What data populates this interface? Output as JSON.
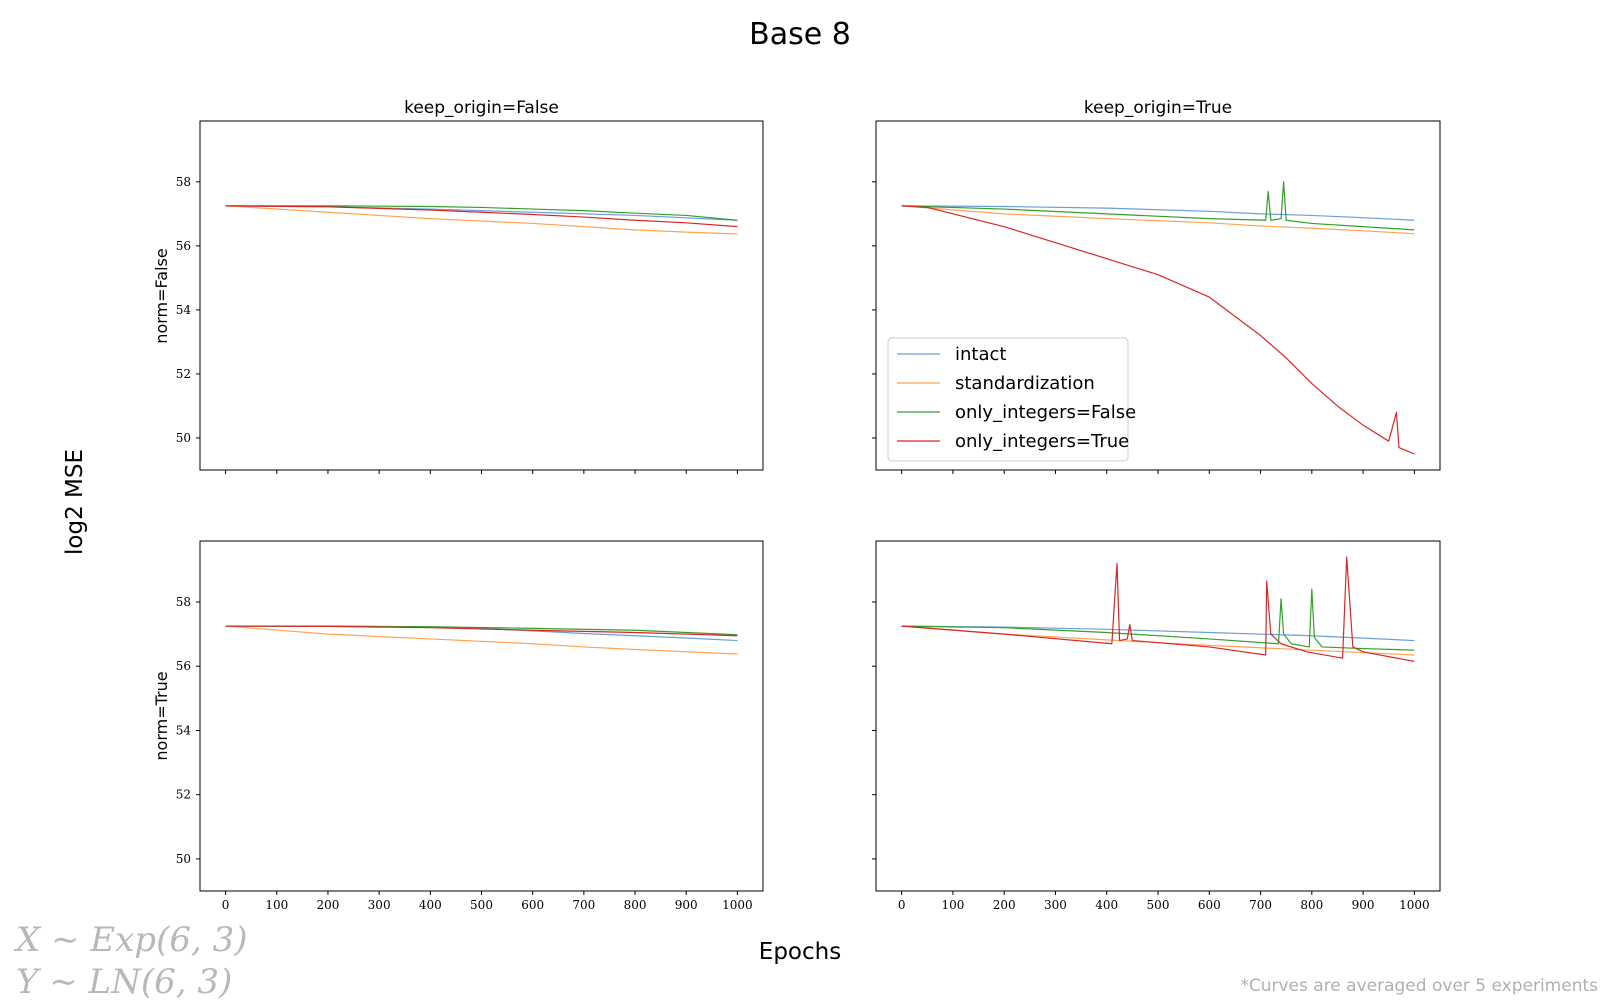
{
  "figure": {
    "title": "Base 8",
    "shared_ylabel": "log2 MSE",
    "shared_xlabel": "Epochs",
    "col_titles": [
      "keep_origin=False",
      "keep_origin=True"
    ],
    "row_labels": [
      "norm=False",
      "norm=True"
    ],
    "formula_x": "X ∼ Exp(6, 3)",
    "formula_y": "Y ∼ LN(6, 3)",
    "footnote": "*Curves are averaged over 5 experiments"
  },
  "colors": {
    "intact": "#6b9fd6",
    "standardization": "#ffa454",
    "only_integers_false": "#33a02c",
    "only_integers_true": "#d62728"
  },
  "legend_items": [
    {
      "label": "intact",
      "color": "#6b9fd6"
    },
    {
      "label": "standardization",
      "color": "#ffa454"
    },
    {
      "label": "only_integers=False",
      "color": "#33a02c"
    },
    {
      "label": "only_integers=True",
      "color": "#d62728"
    }
  ],
  "axes": {
    "x_ticks": [
      0,
      100,
      200,
      300,
      400,
      500,
      600,
      700,
      800,
      900,
      1000
    ],
    "y_ticks": [
      50,
      52,
      54,
      56,
      58
    ],
    "xlim": [
      -50,
      1050
    ],
    "ylim": [
      49.0,
      59.9
    ]
  },
  "chart_data": [
    {
      "type": "line",
      "panel": "norm=False, keep_origin=False",
      "series": [
        {
          "name": "intact",
          "x": [
            0,
            200,
            400,
            600,
            800,
            1000
          ],
          "y": [
            57.25,
            57.22,
            57.15,
            57.05,
            56.95,
            56.8
          ]
        },
        {
          "name": "standardization",
          "x": [
            0,
            200,
            400,
            600,
            700,
            800,
            900,
            1000
          ],
          "y": [
            57.25,
            57.05,
            56.85,
            56.7,
            56.6,
            56.5,
            56.43,
            56.37
          ]
        },
        {
          "name": "only_integers=False",
          "x": [
            0,
            200,
            400,
            500,
            600,
            700,
            800,
            900,
            1000
          ],
          "y": [
            57.25,
            57.25,
            57.23,
            57.2,
            57.15,
            57.1,
            57.02,
            56.95,
            56.8
          ]
        },
        {
          "name": "only_integers=True",
          "x": [
            0,
            200,
            400,
            500,
            600,
            700,
            800,
            900,
            1000
          ],
          "y": [
            57.25,
            57.22,
            57.12,
            57.05,
            56.98,
            56.9,
            56.8,
            56.72,
            56.6
          ]
        }
      ]
    },
    {
      "type": "line",
      "panel": "norm=False, keep_origin=True",
      "series": [
        {
          "name": "intact",
          "x": [
            0,
            200,
            400,
            600,
            700,
            800,
            900,
            1000
          ],
          "y": [
            57.25,
            57.23,
            57.18,
            57.08,
            57.0,
            56.95,
            56.88,
            56.8
          ]
        },
        {
          "name": "standardization",
          "x": [
            0,
            200,
            400,
            600,
            700,
            800,
            900,
            1000
          ],
          "y": [
            57.25,
            57.0,
            56.85,
            56.72,
            56.62,
            56.55,
            56.47,
            56.38
          ]
        },
        {
          "name": "only_integers=False",
          "x": [
            0,
            200,
            400,
            600,
            710,
            715,
            720,
            740,
            745,
            750,
            800,
            900,
            1000
          ],
          "y": [
            57.25,
            57.15,
            57.0,
            56.85,
            56.8,
            57.7,
            56.8,
            56.85,
            58.0,
            56.8,
            56.7,
            56.6,
            56.5
          ]
        },
        {
          "name": "only_integers=True",
          "x": [
            0,
            50,
            100,
            200,
            300,
            400,
            500,
            600,
            700,
            750,
            800,
            850,
            900,
            950,
            965,
            970,
            1000
          ],
          "y": [
            57.25,
            57.2,
            57.0,
            56.6,
            56.1,
            55.6,
            55.1,
            54.4,
            53.2,
            52.5,
            51.7,
            51.0,
            50.4,
            49.9,
            50.8,
            49.7,
            49.5
          ]
        }
      ]
    },
    {
      "type": "line",
      "panel": "norm=True, keep_origin=False",
      "series": [
        {
          "name": "intact",
          "x": [
            0,
            200,
            400,
            500,
            600,
            700,
            800,
            900,
            1000
          ],
          "y": [
            57.25,
            57.25,
            57.22,
            57.18,
            57.1,
            57.02,
            56.95,
            56.88,
            56.8
          ]
        },
        {
          "name": "standardization",
          "x": [
            0,
            200,
            400,
            600,
            700,
            800,
            900,
            1000
          ],
          "y": [
            57.25,
            57.0,
            56.85,
            56.7,
            56.6,
            56.52,
            56.45,
            56.38
          ]
        },
        {
          "name": "only_integers=False",
          "x": [
            0,
            200,
            400,
            600,
            800,
            1000
          ],
          "y": [
            57.25,
            57.25,
            57.23,
            57.18,
            57.12,
            56.98
          ]
        },
        {
          "name": "only_integers=True",
          "x": [
            0,
            200,
            400,
            600,
            800,
            1000
          ],
          "y": [
            57.25,
            57.24,
            57.2,
            57.12,
            57.05,
            56.95
          ]
        }
      ]
    },
    {
      "type": "line",
      "panel": "norm=True, keep_origin=True",
      "series": [
        {
          "name": "intact",
          "x": [
            0,
            200,
            400,
            600,
            800,
            1000
          ],
          "y": [
            57.25,
            57.22,
            57.15,
            57.05,
            56.95,
            56.8
          ]
        },
        {
          "name": "standardization",
          "x": [
            0,
            200,
            400,
            600,
            800,
            1000
          ],
          "y": [
            57.25,
            57.0,
            56.82,
            56.65,
            56.5,
            56.35
          ]
        },
        {
          "name": "only_integers=False",
          "x": [
            0,
            200,
            400,
            600,
            735,
            740,
            745,
            760,
            795,
            800,
            805,
            820,
            900,
            1000
          ],
          "y": [
            57.25,
            57.2,
            57.05,
            56.85,
            56.7,
            58.1,
            57.0,
            56.7,
            56.6,
            58.4,
            56.9,
            56.6,
            56.55,
            56.5
          ]
        },
        {
          "name": "only_integers=True",
          "x": [
            0,
            200,
            410,
            420,
            425,
            440,
            445,
            450,
            600,
            710,
            712,
            720,
            740,
            790,
            860,
            868,
            880,
            900,
            1000
          ],
          "y": [
            57.25,
            57.0,
            56.7,
            59.2,
            56.8,
            56.85,
            57.3,
            56.8,
            56.6,
            56.35,
            58.65,
            57.0,
            56.7,
            56.45,
            56.25,
            59.4,
            56.6,
            56.45,
            56.15
          ]
        }
      ]
    }
  ]
}
